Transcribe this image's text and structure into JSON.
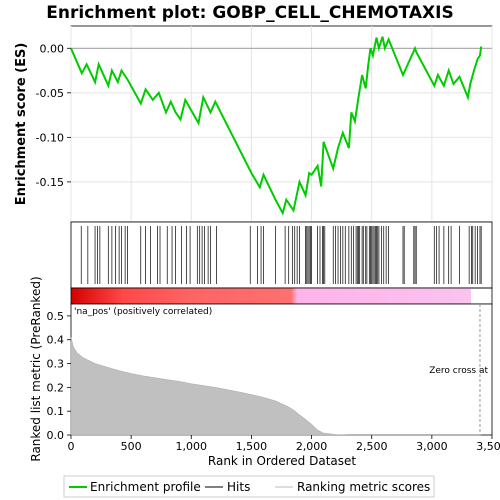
{
  "chart_data": {
    "type": "line",
    "title": "Enrichment plot: GOBP_CELL_CHEMOTAXIS",
    "top_panel": {
      "ylabel": "Enrichment score (ES)",
      "ylim": [
        -0.195,
        0.025
      ],
      "yticks": [
        0.0,
        -0.05,
        -0.1,
        -0.15
      ],
      "ytick_labels": [
        "0.00",
        "-0.05",
        "-0.10",
        "-0.15"
      ],
      "grid": true,
      "zero_line": true,
      "series": [
        {
          "name": "Enrichment profile",
          "color": "#00cc00",
          "x": [
            0,
            90,
            130,
            200,
            230,
            310,
            340,
            390,
            420,
            470,
            580,
            620,
            680,
            730,
            790,
            830,
            870,
            910,
            950,
            1060,
            1100,
            1160,
            1200,
            1500,
            1570,
            1600,
            1700,
            1760,
            1790,
            1850,
            1900,
            1950,
            1980,
            2000,
            2050,
            2080,
            2100,
            2180,
            2220,
            2260,
            2310,
            2330,
            2360,
            2390,
            2420,
            2450,
            2470,
            2490,
            2510,
            2540,
            2560,
            2590,
            2610,
            2640,
            2760,
            2860,
            2870,
            3020,
            3050,
            3100,
            3140,
            3180,
            3230,
            3300,
            3320,
            3350,
            3380,
            3400,
            3410
          ],
          "y": [
            0.0,
            -0.028,
            -0.018,
            -0.038,
            -0.018,
            -0.042,
            -0.025,
            -0.038,
            -0.025,
            -0.035,
            -0.062,
            -0.046,
            -0.058,
            -0.05,
            -0.072,
            -0.06,
            -0.072,
            -0.08,
            -0.058,
            -0.084,
            -0.055,
            -0.072,
            -0.06,
            -0.14,
            -0.156,
            -0.142,
            -0.17,
            -0.185,
            -0.17,
            -0.182,
            -0.15,
            -0.165,
            -0.14,
            -0.142,
            -0.132,
            -0.155,
            -0.105,
            -0.135,
            -0.112,
            -0.095,
            -0.112,
            -0.072,
            -0.082,
            -0.055,
            -0.03,
            -0.045,
            -0.02,
            0.0,
            -0.008,
            0.012,
            0.0,
            0.013,
            0.0,
            0.01,
            -0.03,
            0.0,
            -0.004,
            -0.042,
            -0.03,
            -0.042,
            -0.025,
            -0.04,
            -0.032,
            -0.055,
            -0.04,
            -0.025,
            -0.012,
            -0.008,
            0.002
          ]
        }
      ]
    },
    "hits_panel": {
      "series_name": "Hits",
      "hit_positions": [
        85,
        140,
        200,
        220,
        240,
        310,
        340,
        370,
        400,
        420,
        450,
        470,
        580,
        620,
        660,
        720,
        740,
        800,
        840,
        870,
        920,
        960,
        990,
        1050,
        1070,
        1090,
        1110,
        1140,
        1160,
        1210,
        1490,
        1550,
        1580,
        1600,
        1700,
        1780,
        1810,
        1840,
        1860,
        1880,
        1900,
        1950,
        1960,
        1970,
        1980,
        1990,
        2000,
        2050,
        2070,
        2090,
        2100,
        2110,
        2180,
        2200,
        2220,
        2240,
        2260,
        2280,
        2310,
        2330,
        2350,
        2370,
        2380,
        2390,
        2400,
        2420,
        2430,
        2450,
        2460,
        2480,
        2490,
        2500,
        2510,
        2520,
        2530,
        2540,
        2550,
        2560,
        2580,
        2600,
        2620,
        2640,
        2760,
        2770,
        2850,
        2860,
        2870,
        3020,
        3040,
        3060,
        3100,
        3140,
        3160,
        3230,
        3310,
        3330,
        3340,
        3360,
        3380,
        3400,
        3410
      ]
    },
    "ranking_panel": {
      "ylabel": "Ranked list metric (PreRanked)",
      "xlabel": "Rank in Ordered Dataset",
      "ylim": [
        0,
        0.55
      ],
      "yticks": [
        0.0,
        0.1,
        0.2,
        0.3,
        0.4,
        0.5
      ],
      "ytick_labels": [
        "0.0",
        "0.1",
        "0.2",
        "0.3",
        "0.4",
        "0.5"
      ],
      "series_name": "Ranking metric scores",
      "metric_x": [
        0,
        20,
        50,
        100,
        200,
        300,
        400,
        500,
        600,
        700,
        800,
        900,
        1000,
        1100,
        1200,
        1300,
        1400,
        1500,
        1600,
        1700,
        1800,
        1850,
        1900,
        1950,
        2000,
        2050,
        2100,
        2200,
        2300,
        2500,
        3000,
        3400,
        3410
      ],
      "metric_y": [
        0.41,
        0.37,
        0.345,
        0.325,
        0.3,
        0.285,
        0.27,
        0.258,
        0.248,
        0.24,
        0.232,
        0.225,
        0.215,
        0.208,
        0.2,
        0.19,
        0.18,
        0.17,
        0.158,
        0.143,
        0.12,
        0.105,
        0.085,
        0.065,
        0.045,
        0.02,
        0.008,
        0.002,
        0.0,
        0.0,
        0.0,
        0.0,
        0.0
      ],
      "positive_label": "'na_pos' (positively correlated)",
      "zero_cross_label": "Zero cross at",
      "zero_cross_x": 3400
    },
    "x_axis": {
      "xlim": [
        0,
        3500
      ],
      "xticks": [
        0,
        500,
        1000,
        1500,
        2000,
        2500,
        3000,
        3500
      ],
      "xtick_labels": [
        "0",
        "500",
        "1,000",
        "1,500",
        "2,000",
        "2,500",
        "3,000",
        "3,500"
      ]
    },
    "legend": {
      "placement": "bottom",
      "entries": [
        "Enrichment profile",
        "Hits",
        "Ranking metric scores"
      ]
    }
  }
}
